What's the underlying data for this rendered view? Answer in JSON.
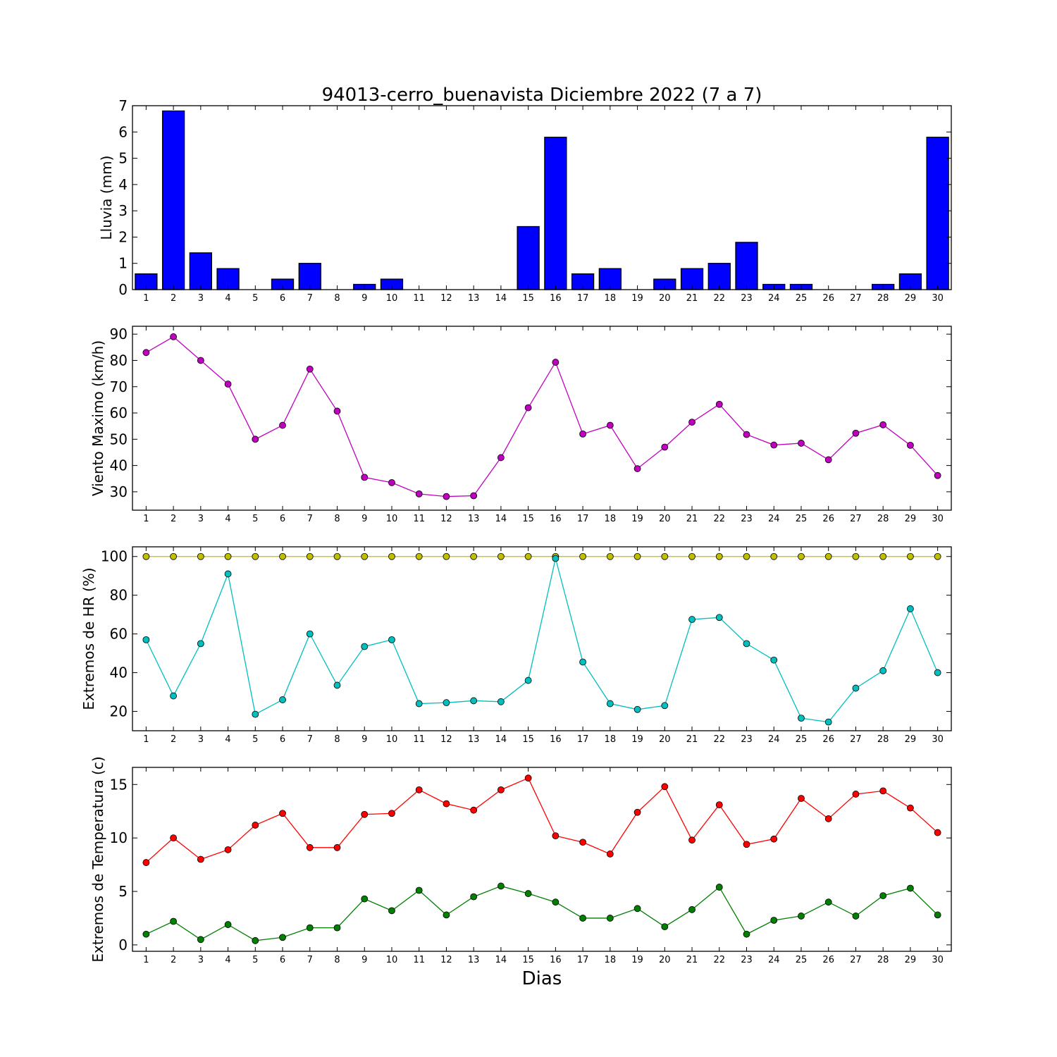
{
  "chart_data": [
    {
      "type": "bar",
      "title": "94013-cerro_buenavista Diciembre 2022  (7 a 7)",
      "ylabel": "Lluvia (mm)",
      "xlabel": "",
      "categories": [
        "1",
        "2",
        "3",
        "4",
        "5",
        "6",
        "7",
        "8",
        "9",
        "10",
        "11",
        "12",
        "13",
        "14",
        "15",
        "16",
        "17",
        "18",
        "19",
        "20",
        "21",
        "22",
        "23",
        "24",
        "25",
        "26",
        "27",
        "28",
        "29",
        "30"
      ],
      "values": [
        0.6,
        6.8,
        1.4,
        0.8,
        0.0,
        0.4,
        1.0,
        0.0,
        0.2,
        0.4,
        0.0,
        0.0,
        0.0,
        0.0,
        2.4,
        5.8,
        0.6,
        0.8,
        0.0,
        0.4,
        0.8,
        1.0,
        1.8,
        0.2,
        0.2,
        0.0,
        0.0,
        0.2,
        0.6,
        5.8
      ],
      "ylim": [
        0,
        7
      ],
      "yticks": [
        0,
        1,
        2,
        3,
        4,
        5,
        6,
        7
      ],
      "color": "#0000ff"
    },
    {
      "type": "line",
      "title": "",
      "ylabel": "Viento Maximo (km/h)",
      "xlabel": "",
      "x": [
        1,
        2,
        3,
        4,
        5,
        6,
        7,
        8,
        9,
        10,
        11,
        12,
        13,
        14,
        15,
        16,
        17,
        18,
        19,
        20,
        21,
        22,
        23,
        24,
        25,
        26,
        27,
        28,
        29,
        30
      ],
      "series": [
        {
          "color": "#bf00bf",
          "values": [
            83.0,
            89.0,
            80.0,
            71.0,
            50.0,
            55.3,
            76.7,
            60.7,
            35.5,
            33.5,
            29.2,
            28.2,
            28.5,
            43.0,
            62.0,
            79.3,
            52.0,
            55.3,
            38.8,
            47.0,
            56.5,
            63.3,
            51.8,
            47.8,
            48.5,
            42.2,
            52.3,
            55.5,
            47.7,
            36.2
          ]
        }
      ],
      "ylim": [
        23,
        93
      ],
      "yticks": [
        30,
        40,
        50,
        60,
        70,
        80,
        90
      ]
    },
    {
      "type": "line",
      "title": "",
      "ylabel": "Extremos de HR (%)",
      "xlabel": "",
      "x": [
        1,
        2,
        3,
        4,
        5,
        6,
        7,
        8,
        9,
        10,
        11,
        12,
        13,
        14,
        15,
        16,
        17,
        18,
        19,
        20,
        21,
        22,
        23,
        24,
        25,
        26,
        27,
        28,
        29,
        30
      ],
      "series": [
        {
          "color": "#bfbf00",
          "values": [
            100,
            100,
            100,
            100,
            100,
            100,
            100,
            100,
            100,
            100,
            100,
            100,
            100,
            100,
            100,
            100,
            100,
            100,
            100,
            100,
            100,
            100,
            100,
            100,
            100,
            100,
            100,
            100,
            100,
            100
          ]
        },
        {
          "color": "#00bfbf",
          "values": [
            57.0,
            28.0,
            55.0,
            91.0,
            18.5,
            26.0,
            60.0,
            33.5,
            53.5,
            57.0,
            24.0,
            24.5,
            25.5,
            25.0,
            36.0,
            99.0,
            45.5,
            24.0,
            21.0,
            23.0,
            67.5,
            68.5,
            55.0,
            46.5,
            16.5,
            14.5,
            32.0,
            41.0,
            73.0,
            40.0
          ]
        }
      ],
      "ylim": [
        10,
        105
      ],
      "yticks": [
        20,
        40,
        60,
        80,
        100
      ]
    },
    {
      "type": "line",
      "title": "",
      "ylabel": "Extremos de Temperatura (c)",
      "xlabel": "Dias",
      "x": [
        1,
        2,
        3,
        4,
        5,
        6,
        7,
        8,
        9,
        10,
        11,
        12,
        13,
        14,
        15,
        16,
        17,
        18,
        19,
        20,
        21,
        22,
        23,
        24,
        25,
        26,
        27,
        28,
        29,
        30
      ],
      "series": [
        {
          "color": "#ff0000",
          "values": [
            7.7,
            10.0,
            8.0,
            8.9,
            11.2,
            12.3,
            9.1,
            9.1,
            12.2,
            12.3,
            14.5,
            13.2,
            12.6,
            14.5,
            15.6,
            10.2,
            9.6,
            8.5,
            12.4,
            14.8,
            9.8,
            13.1,
            9.4,
            9.9,
            13.7,
            11.8,
            14.1,
            14.4,
            12.8,
            10.5
          ]
        },
        {
          "color": "#007f00",
          "values": [
            1.0,
            2.2,
            0.5,
            1.9,
            0.4,
            0.7,
            1.6,
            1.6,
            4.3,
            3.2,
            5.1,
            2.8,
            4.5,
            5.5,
            4.8,
            4.0,
            2.5,
            2.5,
            3.4,
            1.7,
            3.3,
            5.4,
            1.0,
            2.3,
            2.7,
            4.0,
            2.7,
            4.6,
            5.3,
            2.8
          ]
        }
      ],
      "ylim": [
        -0.6,
        16.6
      ],
      "yticks": [
        0,
        5,
        10,
        15
      ]
    }
  ]
}
